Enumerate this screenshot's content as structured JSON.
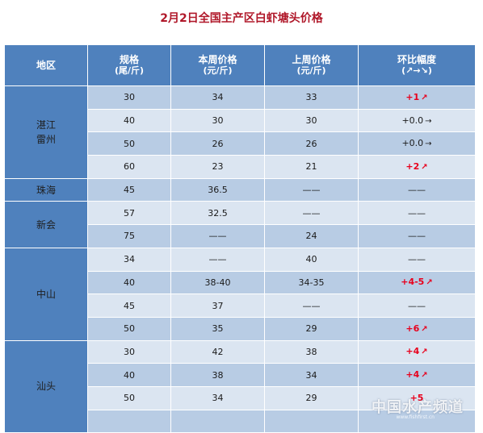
{
  "title": "2月2日全国主产区白虾塘头价格",
  "headers": {
    "region": "地区",
    "spec": "规格",
    "spec_unit": "(尾/斤)",
    "this_week": "本周价格",
    "this_week_unit": "(元/斤)",
    "last_week": "上周价格",
    "last_week_unit": "(元/斤)",
    "change": "环比幅度",
    "change_unit": "(↗→↘)"
  },
  "groups": [
    {
      "region": "湛江\n雷州",
      "rows": [
        {
          "spec": "30",
          "this_week": "34",
          "last_week": "33",
          "change": "+1",
          "arrow": "↗",
          "color": "red"
        },
        {
          "spec": "40",
          "this_week": "30",
          "last_week": "30",
          "change": "+0.0",
          "arrow": "→",
          "color": "black"
        },
        {
          "spec": "50",
          "this_week": "26",
          "last_week": "26",
          "change": "+0.0",
          "arrow": "→",
          "color": "black"
        },
        {
          "spec": "60",
          "this_week": "23",
          "last_week": "21",
          "change": "+2",
          "arrow": "↗",
          "color": "red"
        }
      ]
    },
    {
      "region": "珠海",
      "rows": [
        {
          "spec": "45",
          "this_week": "36.5",
          "last_week": "——",
          "change": "——",
          "arrow": "",
          "color": "black"
        }
      ]
    },
    {
      "region": "新会",
      "rows": [
        {
          "spec": "57",
          "this_week": "32.5",
          "last_week": "——",
          "change": "——",
          "arrow": "",
          "color": "black"
        },
        {
          "spec": "75",
          "this_week": "——",
          "last_week": "24",
          "change": "——",
          "arrow": "",
          "color": "black"
        }
      ]
    },
    {
      "region": "中山",
      "rows": [
        {
          "spec": "34",
          "this_week": "——",
          "last_week": "40",
          "change": "——",
          "arrow": "",
          "color": "black"
        },
        {
          "spec": "40",
          "this_week": "38-40",
          "last_week": "34-35",
          "change": "+4-5",
          "arrow": "↗",
          "color": "red"
        },
        {
          "spec": "45",
          "this_week": "37",
          "last_week": "——",
          "change": "——",
          "arrow": "",
          "color": "black"
        },
        {
          "spec": "50",
          "this_week": "35",
          "last_week": "29",
          "change": "+6",
          "arrow": "↗",
          "color": "red"
        }
      ]
    },
    {
      "region": "汕头",
      "rows": [
        {
          "spec": "30",
          "this_week": "42",
          "last_week": "38",
          "change": "+4",
          "arrow": "↗",
          "color": "red"
        },
        {
          "spec": "40",
          "this_week": "38",
          "last_week": "34",
          "change": "+4",
          "arrow": "↗",
          "color": "red"
        },
        {
          "spec": "50",
          "this_week": "34",
          "last_week": "29",
          "change": "+5",
          "arrow": "",
          "color": "red"
        },
        {
          "spec": "",
          "this_week": "",
          "last_week": "",
          "change": "",
          "arrow": "",
          "color": "black"
        }
      ]
    }
  ],
  "watermark": "中国水产频道",
  "watermark_url": "www.fishfirst.cn",
  "colors": {
    "title": "#b0182a",
    "header_bg": "#4f81bd",
    "row_dark": "#b8cce4",
    "row_light": "#dbe5f1",
    "up": "#e8001c"
  }
}
